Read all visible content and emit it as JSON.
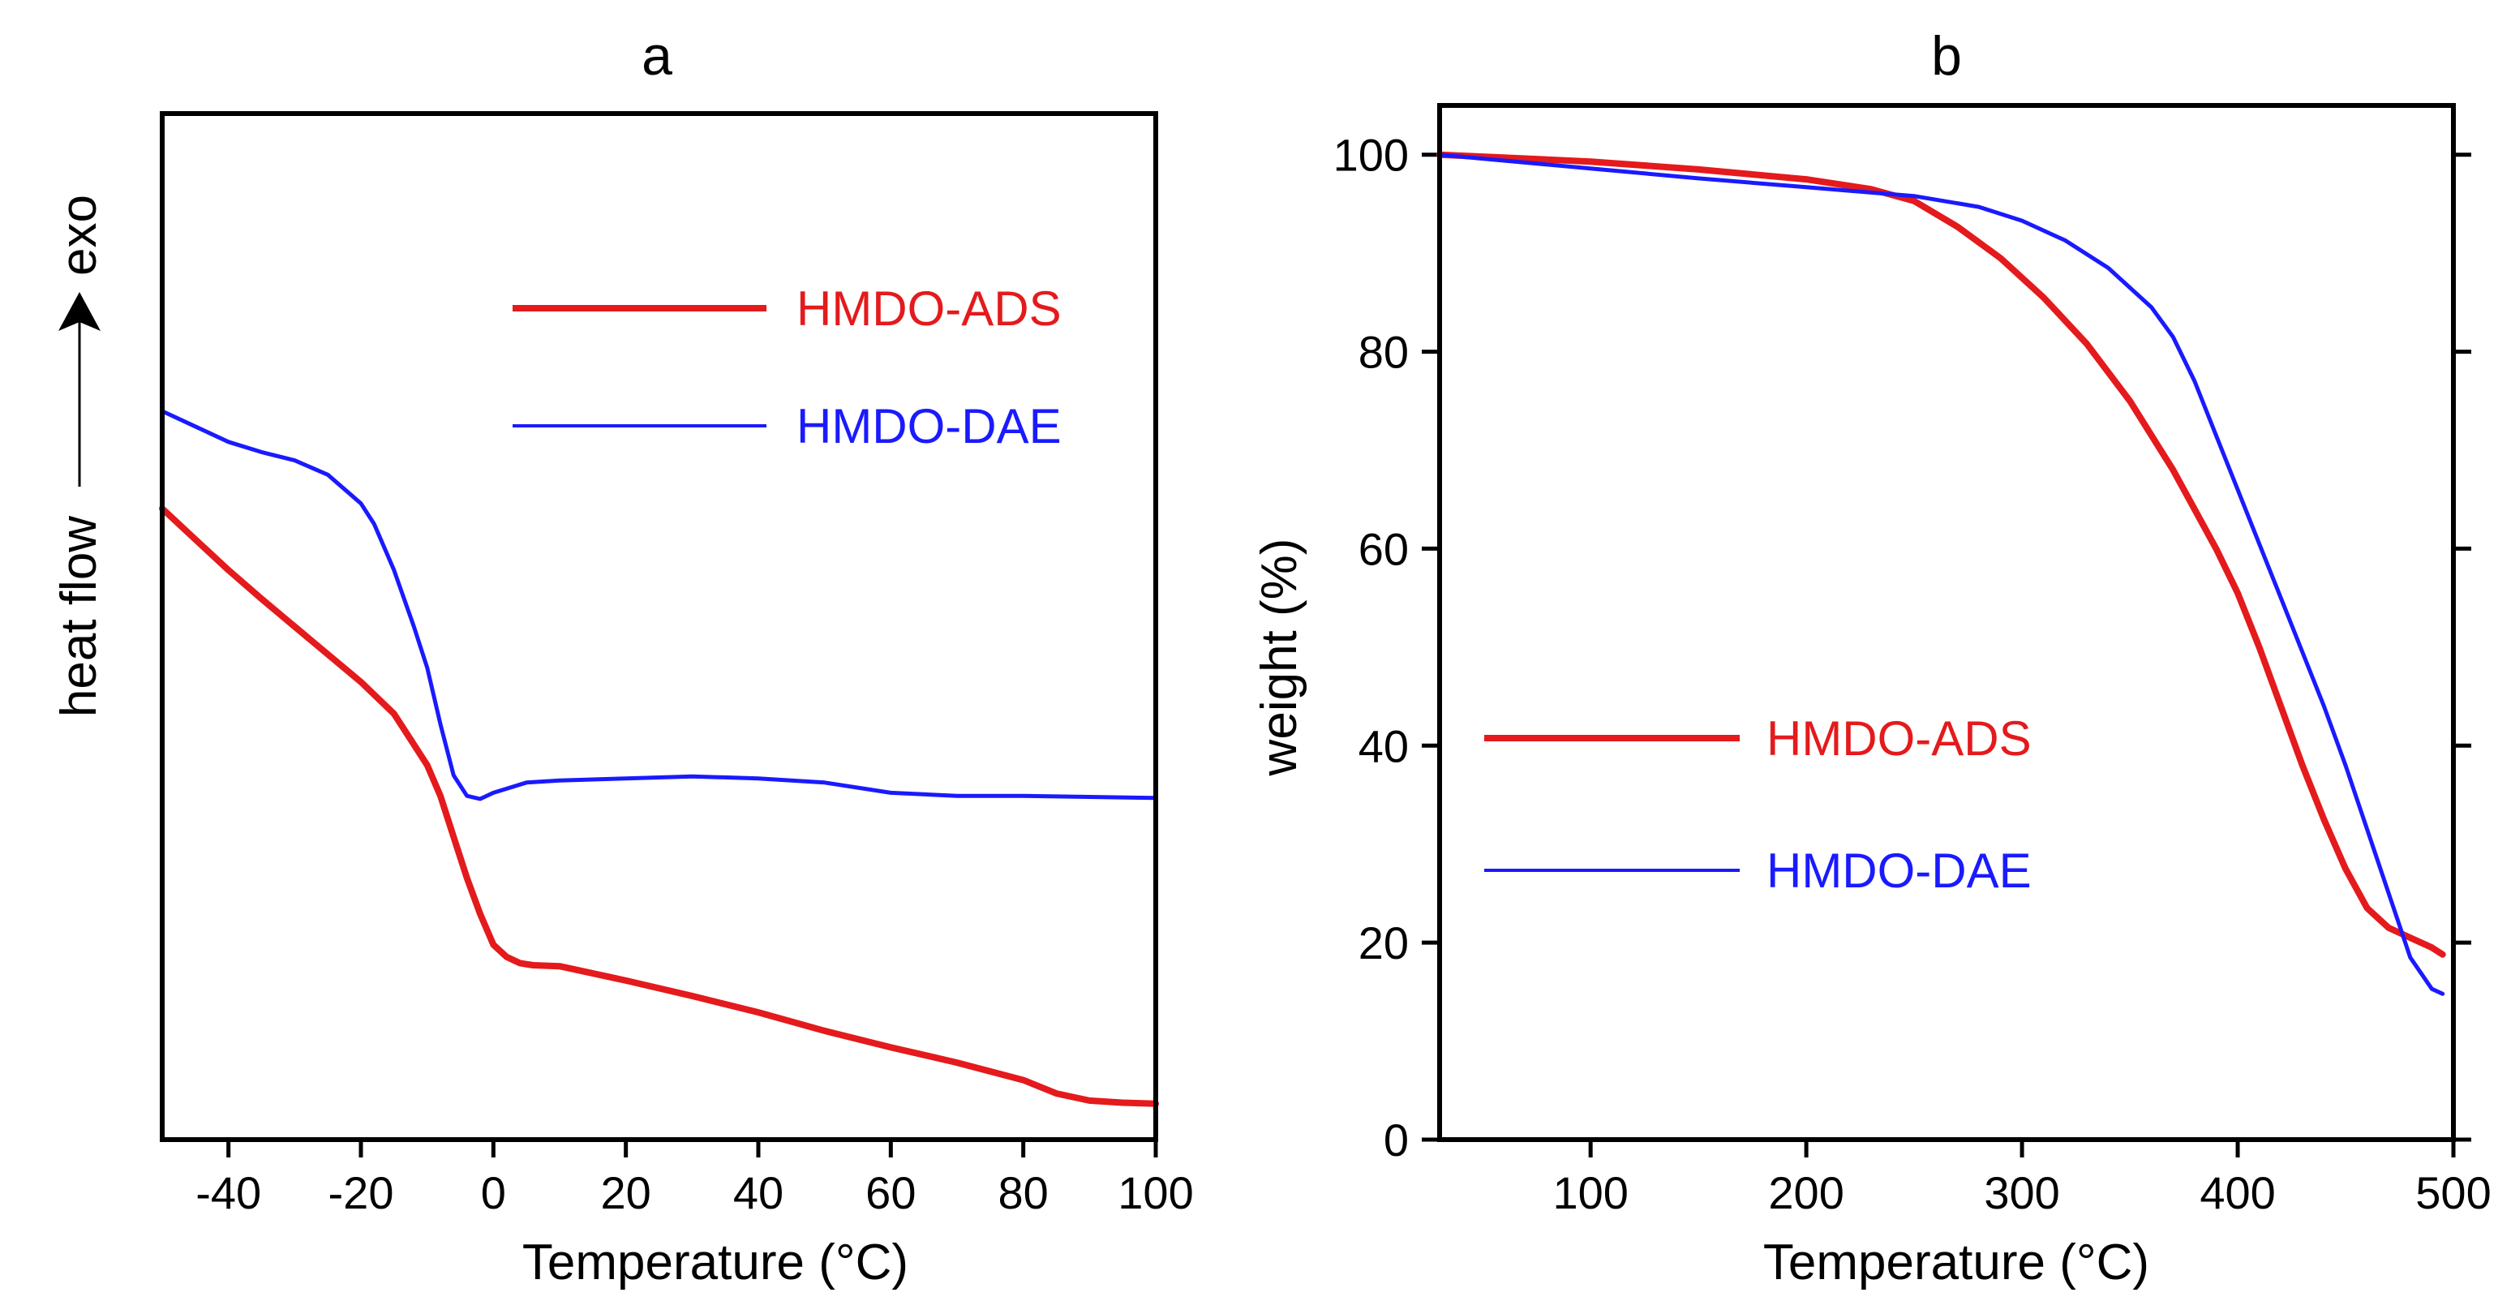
{
  "chart_data": [
    {
      "type": "line",
      "title": "a",
      "xlabel": "Temperature (°C)",
      "ylabel": "heat flow",
      "ylabel_arrow_text": "exo",
      "xlim": [
        -50,
        100
      ],
      "ylim": [
        0,
        100
      ],
      "xticks": [
        -40,
        -20,
        0,
        20,
        40,
        60,
        80,
        100
      ],
      "yticks": [],
      "legend_position": "top-right",
      "series": [
        {
          "name": "HMDO-ADS",
          "color": "#e41a1c",
          "line_width": "thick",
          "x": [
            -50,
            -45,
            -40,
            -35,
            -30,
            -25,
            -20,
            -15,
            -10,
            -8,
            -6,
            -4,
            -2,
            0,
            2,
            4,
            6,
            10,
            20,
            30,
            40,
            50,
            60,
            70,
            80,
            85,
            90,
            95,
            100
          ],
          "y": [
            61.5,
            58.5,
            55.5,
            52.7,
            50,
            47.3,
            44.6,
            41.5,
            36.5,
            33.5,
            29.5,
            25.5,
            22,
            19,
            17.8,
            17.2,
            17,
            16.9,
            15.5,
            14,
            12.4,
            10.6,
            9,
            7.5,
            5.8,
            4.5,
            3.8,
            3.6,
            3.5
          ]
        },
        {
          "name": "HMDO-DAE",
          "color": "#1a1aff",
          "line_width": "medium",
          "x": [
            -50,
            -45,
            -40,
            -35,
            -30,
            -25,
            -20,
            -18,
            -15,
            -12,
            -10,
            -8,
            -6,
            -4,
            -2,
            0,
            5,
            10,
            20,
            30,
            40,
            50,
            60,
            70,
            80,
            90,
            100
          ],
          "y": [
            71,
            69.5,
            68,
            67,
            66.2,
            64.8,
            62,
            60,
            55.5,
            50,
            46,
            40.5,
            35.5,
            33.5,
            33.2,
            33.8,
            34.8,
            35,
            35.2,
            35.4,
            35.2,
            34.8,
            33.8,
            33.5,
            33.5,
            33.4,
            33.3
          ]
        }
      ]
    },
    {
      "type": "line",
      "title": "b",
      "xlabel": "Temperature (°C)",
      "ylabel": "weight (%)",
      "xlim": [
        30,
        500
      ],
      "ylim": [
        0,
        105
      ],
      "xticks": [
        100,
        200,
        300,
        400,
        500
      ],
      "yticks": [
        0,
        20,
        40,
        60,
        80,
        100
      ],
      "legend_position": "center-left",
      "series": [
        {
          "name": "HMDO-ADS",
          "color": "#e41a1c",
          "line_width": "thick",
          "x": [
            30,
            50,
            100,
            150,
            200,
            230,
            250,
            270,
            290,
            310,
            330,
            350,
            370,
            390,
            400,
            410,
            420,
            430,
            440,
            450,
            460,
            470,
            480,
            490,
            495
          ],
          "y": [
            100,
            99.8,
            99.3,
            98.5,
            97.5,
            96.5,
            95.3,
            92.7,
            89.5,
            85.5,
            80.8,
            75,
            68,
            60,
            55.5,
            50,
            44,
            38,
            32.5,
            27.5,
            23.5,
            21.5,
            20.5,
            19.5,
            18.8
          ]
        },
        {
          "name": "HMDO-DAE",
          "color": "#1a1aff",
          "line_width": "medium",
          "x": [
            30,
            50,
            100,
            150,
            200,
            250,
            280,
            300,
            320,
            340,
            360,
            370,
            380,
            390,
            400,
            410,
            420,
            430,
            440,
            450,
            460,
            470,
            480,
            490,
            495
          ],
          "y": [
            100,
            99.6,
            98.6,
            97.6,
            96.7,
            95.8,
            94.7,
            93.3,
            91.3,
            88.5,
            84.5,
            81.5,
            77,
            71.5,
            66,
            60.5,
            55,
            49.5,
            44,
            38,
            31.5,
            25,
            18.5,
            15.3,
            14.8
          ]
        }
      ]
    }
  ]
}
